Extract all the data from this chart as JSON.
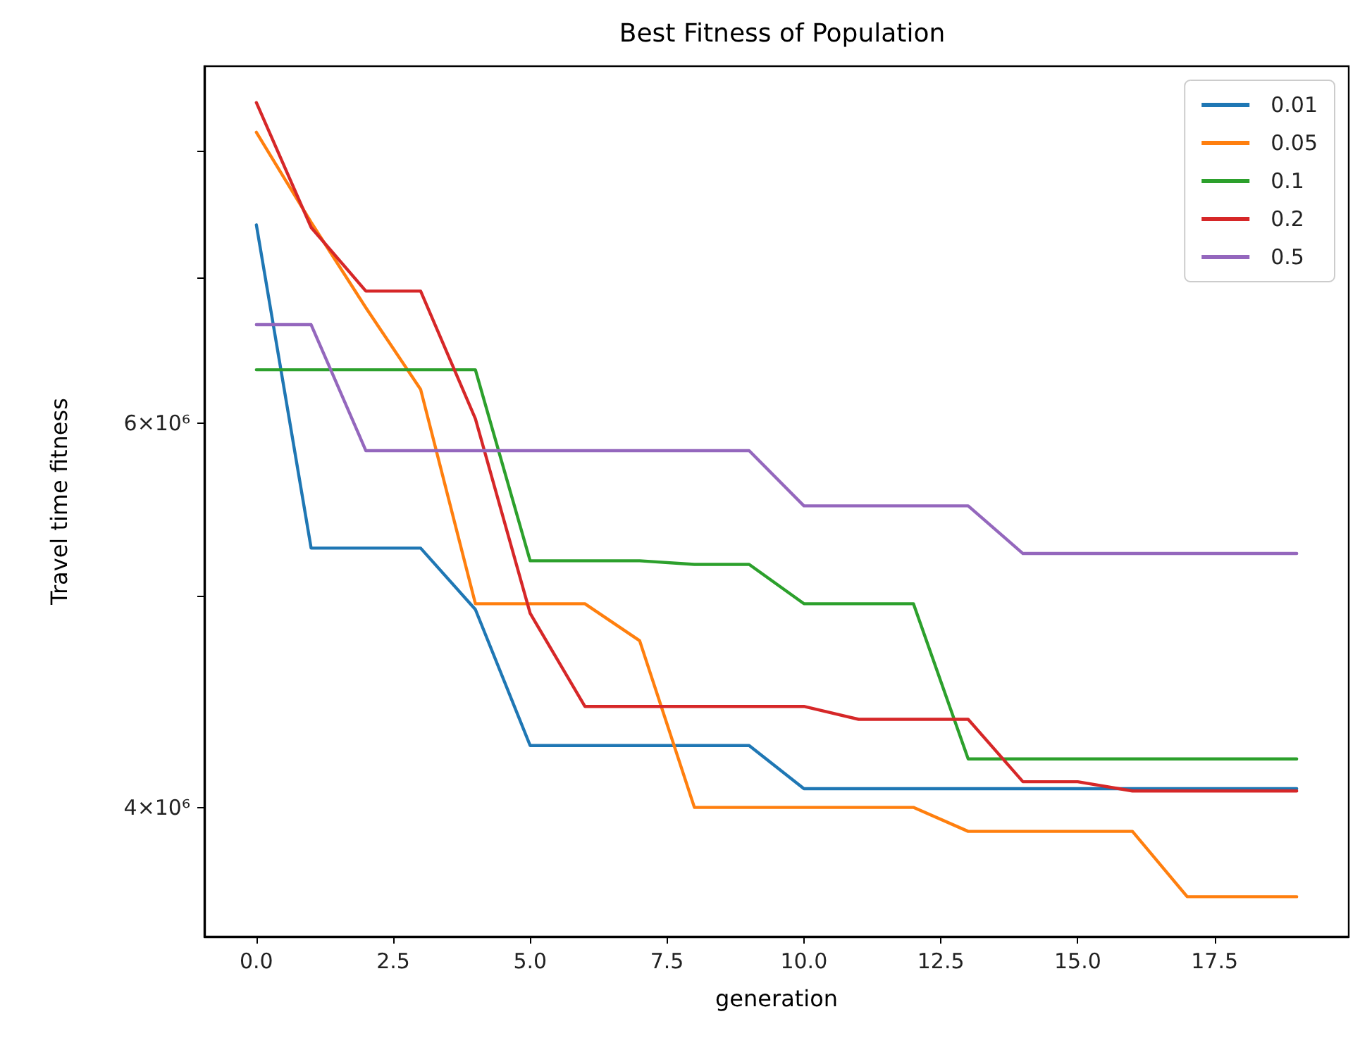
{
  "chart_data": {
    "type": "line",
    "title": "Best Fitness of Population",
    "xlabel": "generation",
    "ylabel": "Travel time fitness",
    "x": [
      0,
      1,
      2,
      3,
      4,
      5,
      6,
      7,
      8,
      9,
      10,
      11,
      12,
      13,
      14,
      15,
      16,
      17,
      18,
      19
    ],
    "series": [
      {
        "name": "0.01",
        "color": "#1f77b4",
        "values": [
          7400000,
          5260000,
          5260000,
          5260000,
          4930000,
          4270000,
          4270000,
          4270000,
          4270000,
          4270000,
          4080000,
          4080000,
          4080000,
          4080000,
          4080000,
          4080000,
          4080000,
          4080000,
          4080000,
          4080000
        ]
      },
      {
        "name": "0.05",
        "color": "#ff7f0e",
        "values": [
          8160000,
          7420000,
          6780000,
          6220000,
          4960000,
          4960000,
          4960000,
          4770000,
          4000000,
          4000000,
          4000000,
          4000000,
          4000000,
          3900000,
          3900000,
          3900000,
          3900000,
          3640000,
          3640000,
          3640000
        ]
      },
      {
        "name": "0.1",
        "color": "#2ca02c",
        "values": [
          6350000,
          6350000,
          6350000,
          6350000,
          6350000,
          5190000,
          5190000,
          5190000,
          5170000,
          5170000,
          4960000,
          4960000,
          4960000,
          4210000,
          4210000,
          4210000,
          4210000,
          4210000,
          4210000,
          4210000
        ]
      },
      {
        "name": "0.2",
        "color": "#d62728",
        "values": [
          8420000,
          7380000,
          6900000,
          6900000,
          6030000,
          4910000,
          4450000,
          4450000,
          4450000,
          4450000,
          4450000,
          4390000,
          4390000,
          4390000,
          4110000,
          4110000,
          4070000,
          4070000,
          4070000,
          4070000
        ]
      },
      {
        "name": "0.5",
        "color": "#9467bd",
        "values": [
          6660000,
          6660000,
          5830000,
          5830000,
          5830000,
          5830000,
          5830000,
          5830000,
          5830000,
          5830000,
          5500000,
          5500000,
          5500000,
          5500000,
          5230000,
          5230000,
          5230000,
          5230000,
          5230000,
          5230000
        ]
      }
    ],
    "xlim": [
      -0.95,
      19.95
    ],
    "xticks": [
      {
        "value": 0,
        "label": "0.0"
      },
      {
        "value": 2.5,
        "label": "2.5"
      },
      {
        "value": 5,
        "label": "5.0"
      },
      {
        "value": 7.5,
        "label": "7.5"
      },
      {
        "value": 10,
        "label": "10.0"
      },
      {
        "value": 12.5,
        "label": "12.5"
      },
      {
        "value": 15,
        "label": "15.0"
      },
      {
        "value": 17.5,
        "label": "17.5"
      }
    ],
    "ylim": [
      3490000,
      8750000
    ],
    "yticks": [
      {
        "value": 4000000,
        "label": "4×10⁶"
      },
      {
        "value": 5000000,
        "label": null
      },
      {
        "value": 6000000,
        "label": "6×10⁶"
      },
      {
        "value": 7000000,
        "label": null
      },
      {
        "value": 8000000,
        "label": null
      }
    ],
    "log": "y",
    "grid": false,
    "legend": "top right",
    "marker": "none"
  }
}
